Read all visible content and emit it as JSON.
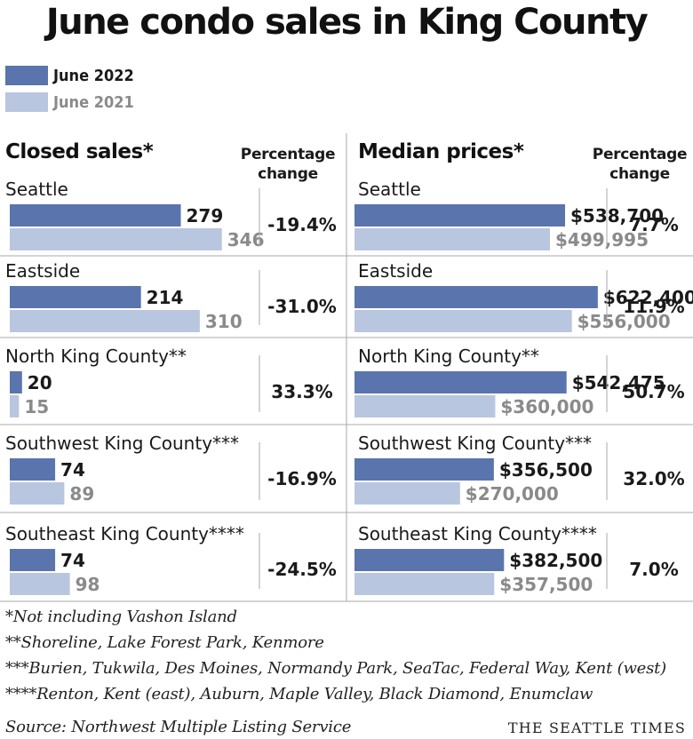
{
  "title": "June condo sales in King County",
  "legend": [
    {
      "label": "June 2022",
      "color": "#5a74ad",
      "text_color": "#1a1a1a"
    },
    {
      "label": "June 2021",
      "color": "#b9c6e0",
      "text_color": "#8a8a8a"
    }
  ],
  "headers": {
    "sales": "Closed sales*",
    "prices": "Median prices*",
    "pct_line1": "Percentage",
    "pct_line2": "change"
  },
  "chart_data": [
    {
      "type": "bar",
      "title": "Closed sales*",
      "categories": [
        "Seattle",
        "Eastside",
        "North King County**",
        "Southwest King County***",
        "Southeast King County****"
      ],
      "series": [
        {
          "name": "June 2022",
          "values": [
            279,
            214,
            20,
            74,
            74
          ],
          "labels": [
            "279",
            "214",
            "20",
            "74",
            "74"
          ]
        },
        {
          "name": "June 2021",
          "values": [
            346,
            310,
            15,
            89,
            98
          ],
          "labels": [
            "346",
            "310",
            "15",
            "89",
            "98"
          ]
        }
      ],
      "percentage_change": [
        "-19.4%",
        "-31.0%",
        "33.3%",
        "-16.9%",
        "-24.5%"
      ],
      "xlim": [
        0,
        400
      ]
    },
    {
      "type": "bar",
      "title": "Median prices*",
      "categories": [
        "Seattle",
        "Eastside",
        "North King County**",
        "Southwest King County***",
        "Southeast King County****"
      ],
      "series": [
        {
          "name": "June 2022",
          "values": [
            538700,
            622400,
            542475,
            356500,
            382500
          ],
          "labels": [
            "$538,700",
            "$622,400",
            "$542,475",
            "$356,500",
            "$382,500"
          ]
        },
        {
          "name": "June 2021",
          "values": [
            499995,
            556000,
            360000,
            270000,
            357500
          ],
          "labels": [
            "$499,995",
            "$556,000",
            "$360,000",
            "$270,000",
            "$357,500"
          ]
        }
      ],
      "percentage_change": [
        "7.7%",
        "11.9%",
        "50.7%",
        "32.0%",
        "7.0%"
      ],
      "xlim": [
        0,
        700000
      ]
    }
  ],
  "footnotes": [
    "*Not including Vashon Island",
    "**Shoreline, Lake Forest Park, Kenmore",
    "***Burien, Tukwila, Des Moines, Normandy Park, SeaTac, Federal Way, Kent (west)",
    "****Renton, Kent (east), Auburn, Maple Valley, Black Diamond, Enumclaw"
  ],
  "source": "Source: Northwest Multiple Listing Service",
  "brand": "THE SEATTLE TIMES",
  "colors": {
    "divider": "#a8a8a8",
    "dark_text": "#1a1a1a",
    "light_text": "#8a8a8a"
  }
}
